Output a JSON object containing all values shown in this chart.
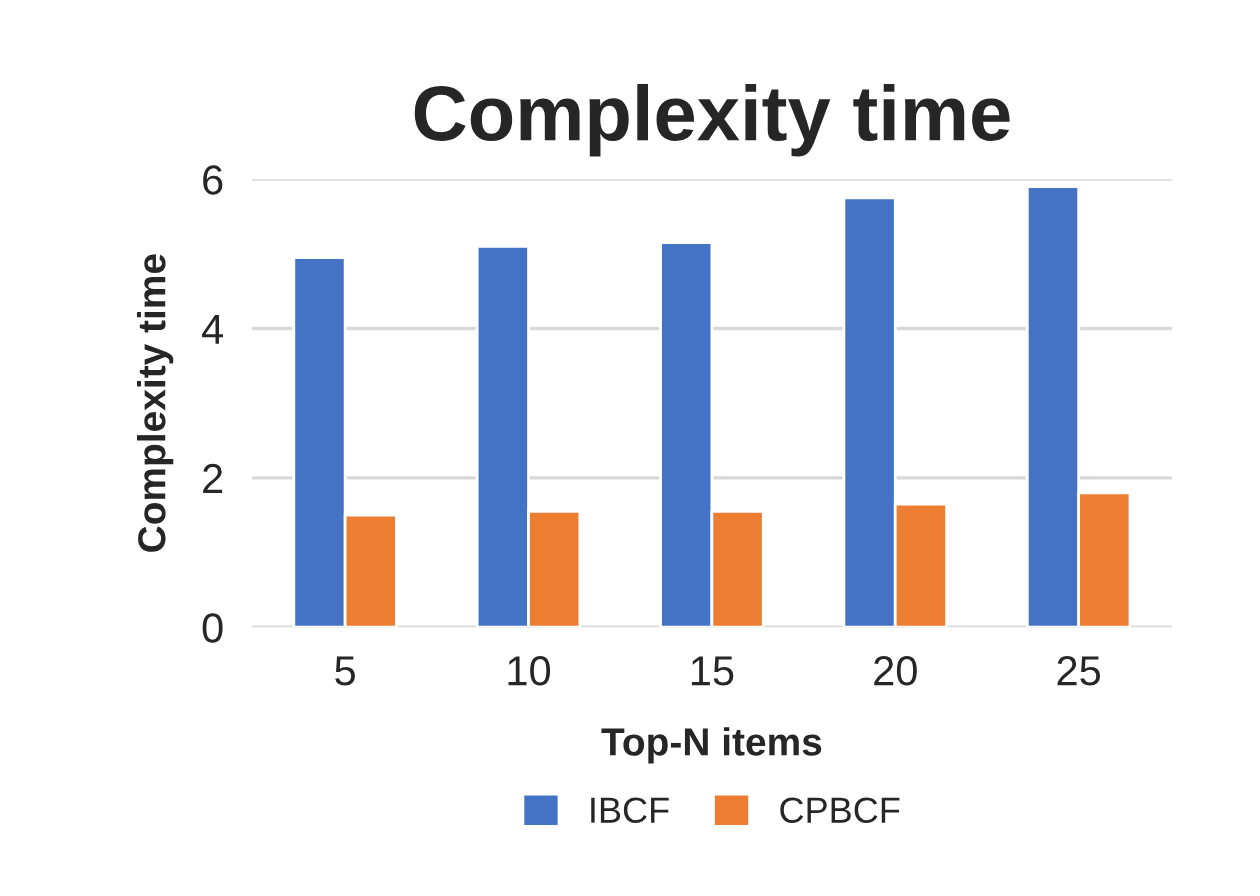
{
  "chart_data": {
    "type": "bar",
    "title": "Complexity time",
    "xlabel": "Top-N items",
    "ylabel": "Complexity time",
    "categories": [
      "5",
      "10",
      "15",
      "20",
      "25"
    ],
    "series": [
      {
        "name": "IBCF",
        "color": "#4472c4",
        "values": [
          4.95,
          5.1,
          5.15,
          5.75,
          5.9
        ]
      },
      {
        "name": "CPBCF",
        "color": "#ed7d31",
        "values": [
          1.5,
          1.55,
          1.55,
          1.65,
          1.8
        ]
      }
    ],
    "ylim": [
      0,
      6
    ],
    "yticks": [
      0,
      2,
      4,
      6
    ],
    "grid": "y",
    "legend": "bottom"
  }
}
